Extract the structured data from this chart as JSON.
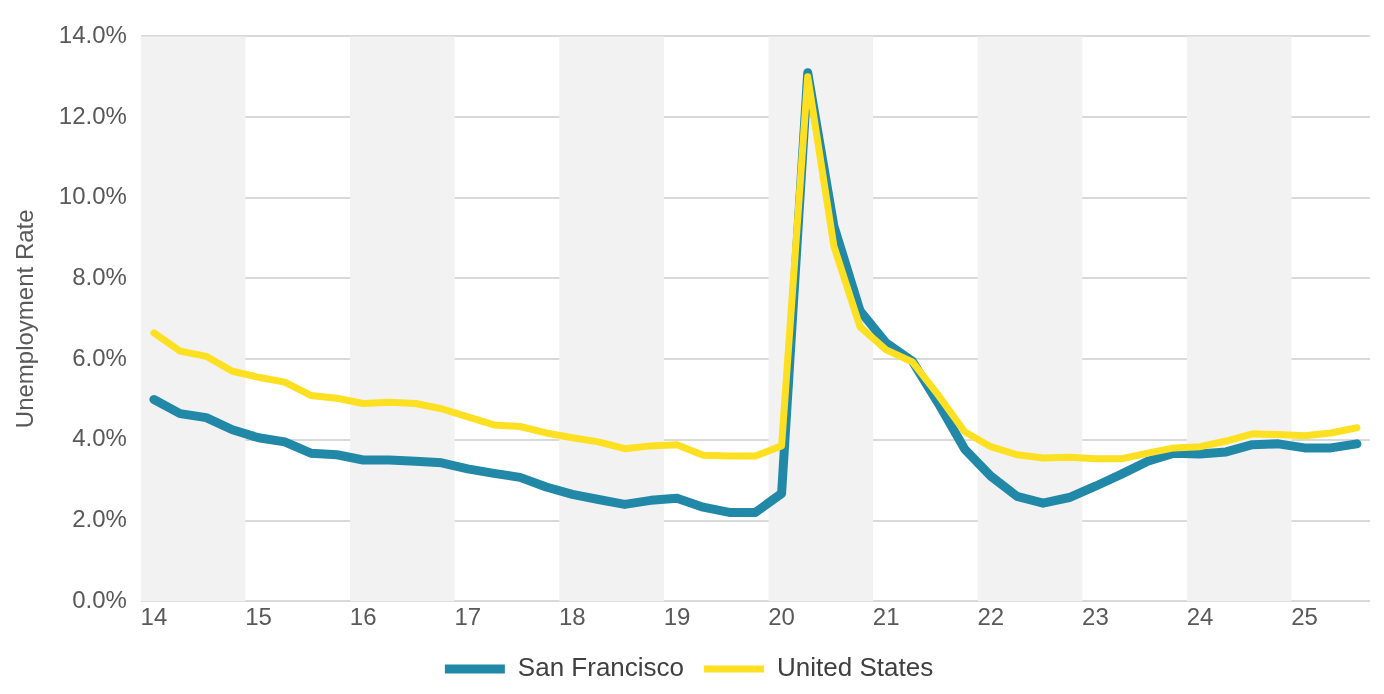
{
  "chart_data": {
    "type": "line",
    "ylabel": "Unemployment Rate",
    "x": [
      14,
      14.25,
      14.5,
      14.75,
      15,
      15.25,
      15.5,
      15.75,
      16,
      16.25,
      16.5,
      16.75,
      17,
      17.25,
      17.5,
      17.75,
      18,
      18.25,
      18.5,
      18.75,
      19,
      19.25,
      19.5,
      19.75,
      20,
      20.25,
      20.5,
      20.75,
      21,
      21.25,
      21.5,
      21.75,
      22,
      22.25,
      22.5,
      22.75,
      23,
      23.25,
      23.5,
      23.75,
      24,
      24.25,
      24.5,
      24.75,
      25,
      25.25,
      25.5
    ],
    "series": [
      {
        "name": "San Francisco",
        "color": "#2188a8",
        "values": [
          5.0,
          4.65,
          4.55,
          4.25,
          4.05,
          3.95,
          3.67,
          3.63,
          3.5,
          3.5,
          3.47,
          3.43,
          3.28,
          3.17,
          3.07,
          2.83,
          2.65,
          2.52,
          2.4,
          2.5,
          2.55,
          2.33,
          2.2,
          2.2,
          2.67,
          13.1,
          9.3,
          7.2,
          6.4,
          5.95,
          4.9,
          3.77,
          3.1,
          2.6,
          2.43,
          2.57,
          2.85,
          3.15,
          3.47,
          3.67,
          3.65,
          3.7,
          3.88,
          3.9,
          3.8,
          3.8,
          3.9
        ]
      },
      {
        "name": "United States",
        "color": "#fde021",
        "values": [
          6.65,
          6.2,
          6.07,
          5.7,
          5.55,
          5.43,
          5.1,
          5.03,
          4.9,
          4.93,
          4.9,
          4.77,
          4.57,
          4.37,
          4.33,
          4.17,
          4.05,
          3.95,
          3.78,
          3.85,
          3.88,
          3.62,
          3.6,
          3.6,
          3.85,
          13.0,
          8.8,
          6.8,
          6.23,
          5.93,
          5.1,
          4.2,
          3.83,
          3.63,
          3.55,
          3.57,
          3.53,
          3.53,
          3.67,
          3.8,
          3.83,
          3.97,
          4.15,
          4.13,
          4.1,
          4.17,
          4.3
        ]
      }
    ],
    "xlim": [
      13.875,
      25.625
    ],
    "xticks": [
      14,
      15,
      16,
      17,
      18,
      19,
      20,
      21,
      22,
      23,
      24,
      25
    ],
    "ylim": [
      0,
      14
    ],
    "yticks": [
      {
        "value": 0,
        "label": "0.0%"
      },
      {
        "value": 2,
        "label": "2.0%"
      },
      {
        "value": 4,
        "label": "4.0%"
      },
      {
        "value": 6,
        "label": "6.0%"
      },
      {
        "value": 8,
        "label": "8.0%"
      },
      {
        "value": 10,
        "label": "10.0%"
      },
      {
        "value": 12,
        "label": "12.0%"
      },
      {
        "value": 14,
        "label": "14.0%"
      }
    ],
    "bands": [
      {
        "axis": "x",
        "from": 13.875,
        "to": 14.875,
        "color": "#f2f2f2"
      },
      {
        "axis": "x",
        "from": 15.875,
        "to": 16.875,
        "color": "#f2f2f2"
      },
      {
        "axis": "x",
        "from": 17.875,
        "to": 18.875,
        "color": "#f2f2f2"
      },
      {
        "axis": "x",
        "from": 19.875,
        "to": 20.875,
        "color": "#f2f2f2"
      },
      {
        "axis": "x",
        "from": 21.875,
        "to": 22.875,
        "color": "#f2f2f2"
      },
      {
        "axis": "x",
        "from": 23.875,
        "to": 24.875,
        "color": "#f2f2f2"
      }
    ],
    "grid": "y",
    "legend": "bottom",
    "marker": "none",
    "line_style": "solid"
  }
}
